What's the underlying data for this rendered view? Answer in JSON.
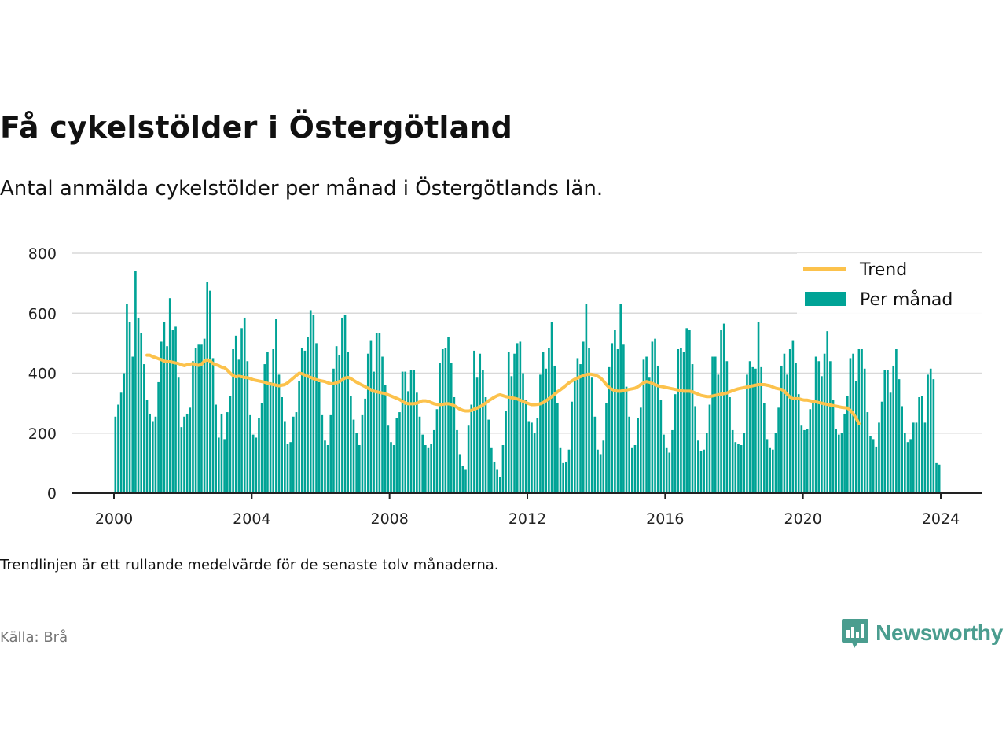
{
  "title": "Få cykelstölder i Östergötland",
  "subtitle": "Antal anmälda cykelstölder per månad i Östergötlands län.",
  "note": "Trendlinjen är ett rullande medelvärde för de senaste tolv månaderna.",
  "source": "Källa: Brå",
  "brand": {
    "name": "Newsworthy",
    "icon": "newsworthy-logo-icon",
    "color": "#4a9d8f"
  },
  "colors": {
    "bar": "#00a396",
    "trend": "#fcc24c",
    "grid": "#d9d9d9",
    "axis": "#222222"
  },
  "chart_data": {
    "type": "bar",
    "title": "Få cykelstölder i Östergötland",
    "subtitle": "Antal anmälda cykelstölder per månad i Östergötlands län.",
    "xlabel": "",
    "ylabel": "",
    "ylim": [
      0,
      800
    ],
    "y_ticks": [
      0,
      200,
      400,
      600,
      800
    ],
    "x_ticks": [
      2000,
      2004,
      2008,
      2012,
      2016,
      2020,
      2024
    ],
    "x_tick_labels": [
      "2000",
      "2004",
      "2008",
      "2012",
      "2016",
      "2020",
      "2024"
    ],
    "grid": true,
    "legend": {
      "placement": "top-right",
      "entries": [
        {
          "name": "Trend",
          "kind": "line"
        },
        {
          "name": "Per månad",
          "kind": "bar"
        }
      ]
    },
    "x_start": "2000-01",
    "series": [
      {
        "name": "Per månad",
        "kind": "bar",
        "values": [
          255,
          295,
          335,
          400,
          630,
          570,
          455,
          740,
          585,
          535,
          430,
          310,
          265,
          240,
          255,
          370,
          505,
          570,
          490,
          650,
          545,
          555,
          385,
          220,
          255,
          265,
          285,
          440,
          485,
          495,
          495,
          515,
          705,
          675,
          450,
          295,
          185,
          265,
          180,
          270,
          325,
          480,
          525,
          445,
          550,
          585,
          440,
          260,
          195,
          185,
          250,
          300,
          430,
          470,
          370,
          480,
          580,
          395,
          320,
          240,
          165,
          170,
          255,
          270,
          375,
          485,
          475,
          520,
          610,
          595,
          500,
          370,
          260,
          175,
          160,
          260,
          415,
          490,
          460,
          585,
          595,
          470,
          325,
          245,
          200,
          160,
          260,
          315,
          465,
          510,
          405,
          535,
          535,
          455,
          360,
          225,
          170,
          160,
          250,
          270,
          405,
          405,
          340,
          410,
          410,
          335,
          255,
          195,
          160,
          150,
          165,
          210,
          280,
          435,
          480,
          485,
          520,
          435,
          320,
          210,
          130,
          90,
          80,
          225,
          295,
          475,
          385,
          465,
          410,
          320,
          245,
          150,
          105,
          80,
          55,
          160,
          275,
          470,
          390,
          465,
          500,
          505,
          400,
          310,
          240,
          235,
          200,
          250,
          395,
          470,
          415,
          485,
          570,
          425,
          300,
          150,
          100,
          105,
          145,
          305,
          375,
          450,
          430,
          505,
          630,
          485,
          385,
          255,
          145,
          130,
          175,
          300,
          420,
          500,
          545,
          480,
          630,
          495,
          355,
          255,
          150,
          160,
          250,
          285,
          445,
          455,
          385,
          505,
          515,
          425,
          310,
          195,
          150,
          135,
          210,
          330,
          480,
          485,
          470,
          550,
          545,
          430,
          290,
          175,
          140,
          145,
          200,
          295,
          455,
          455,
          395,
          545,
          565,
          440,
          320,
          210,
          170,
          165,
          160,
          200,
          395,
          440,
          420,
          415,
          570,
          420,
          300,
          180,
          150,
          145,
          200,
          285,
          425,
          465,
          395,
          480,
          510,
          435,
          330,
          225,
          210,
          215,
          280,
          300,
          455,
          440,
          390,
          465,
          540,
          440,
          310,
          215,
          195,
          200,
          265,
          325,
          450,
          465,
          375,
          480,
          480,
          415,
          270,
          190,
          180,
          155,
          235,
          305,
          410,
          410,
          335,
          425,
          480,
          380,
          290,
          200,
          170,
          180,
          235,
          235,
          320,
          325,
          235,
          395,
          415,
          380,
          100,
          95
        ]
      },
      {
        "name": "Trend",
        "kind": "line",
        "start_index": 11,
        "values": [
          460,
          460,
          455,
          452,
          448,
          445,
          440,
          438,
          438,
          436,
          434,
          432,
          428,
          425,
          428,
          430,
          432,
          428,
          426,
          430,
          440,
          445,
          440,
          432,
          428,
          425,
          420,
          418,
          410,
          400,
          392,
          388,
          390,
          388,
          386,
          385,
          382,
          378,
          376,
          374,
          372,
          370,
          366,
          364,
          362,
          360,
          358,
          360,
          362,
          368,
          376,
          384,
          392,
          400,
          398,
          394,
          390,
          386,
          382,
          378,
          376,
          374,
          372,
          368,
          365,
          365,
          368,
          372,
          378,
          384,
          386,
          382,
          376,
          370,
          365,
          360,
          355,
          350,
          345,
          340,
          338,
          336,
          334,
          332,
          328,
          324,
          320,
          316,
          312,
          306,
          300,
          298,
          298,
          298,
          300,
          304,
          308,
          308,
          306,
          302,
          298,
          296,
          295,
          296,
          298,
          298,
          296,
          292,
          286,
          280,
          276,
          274,
          274,
          276,
          280,
          284,
          288,
          294,
          300,
          308,
          314,
          320,
          325,
          328,
          325,
          322,
          320,
          318,
          316,
          314,
          310,
          306,
          302,
          298,
          295,
          295,
          296,
          298,
          302,
          308,
          315,
          322,
          330,
          338,
          345,
          352,
          360,
          368,
          374,
          380,
          384,
          388,
          392,
          395,
          397,
          396,
          394,
          390,
          384,
          374,
          362,
          352,
          346,
          342,
          340,
          340,
          342,
          344,
          346,
          348,
          350,
          355,
          362,
          368,
          372,
          370,
          366,
          362,
          358,
          356,
          354,
          352,
          350,
          348,
          346,
          344,
          342,
          340,
          340,
          340,
          338,
          334,
          330,
          326,
          324,
          322,
          322,
          324,
          326,
          328,
          330,
          332,
          334,
          338,
          342,
          345,
          348,
          350,
          352,
          354,
          356,
          358,
          360,
          362,
          362,
          362,
          360,
          358,
          354,
          350,
          348,
          346,
          340,
          330,
          320,
          315,
          315,
          315,
          312,
          310,
          310,
          308,
          306,
          304,
          302,
          300,
          298,
          296,
          294,
          292,
          290,
          288,
          286,
          285,
          284,
          276,
          265,
          250,
          232
        ]
      }
    ]
  }
}
